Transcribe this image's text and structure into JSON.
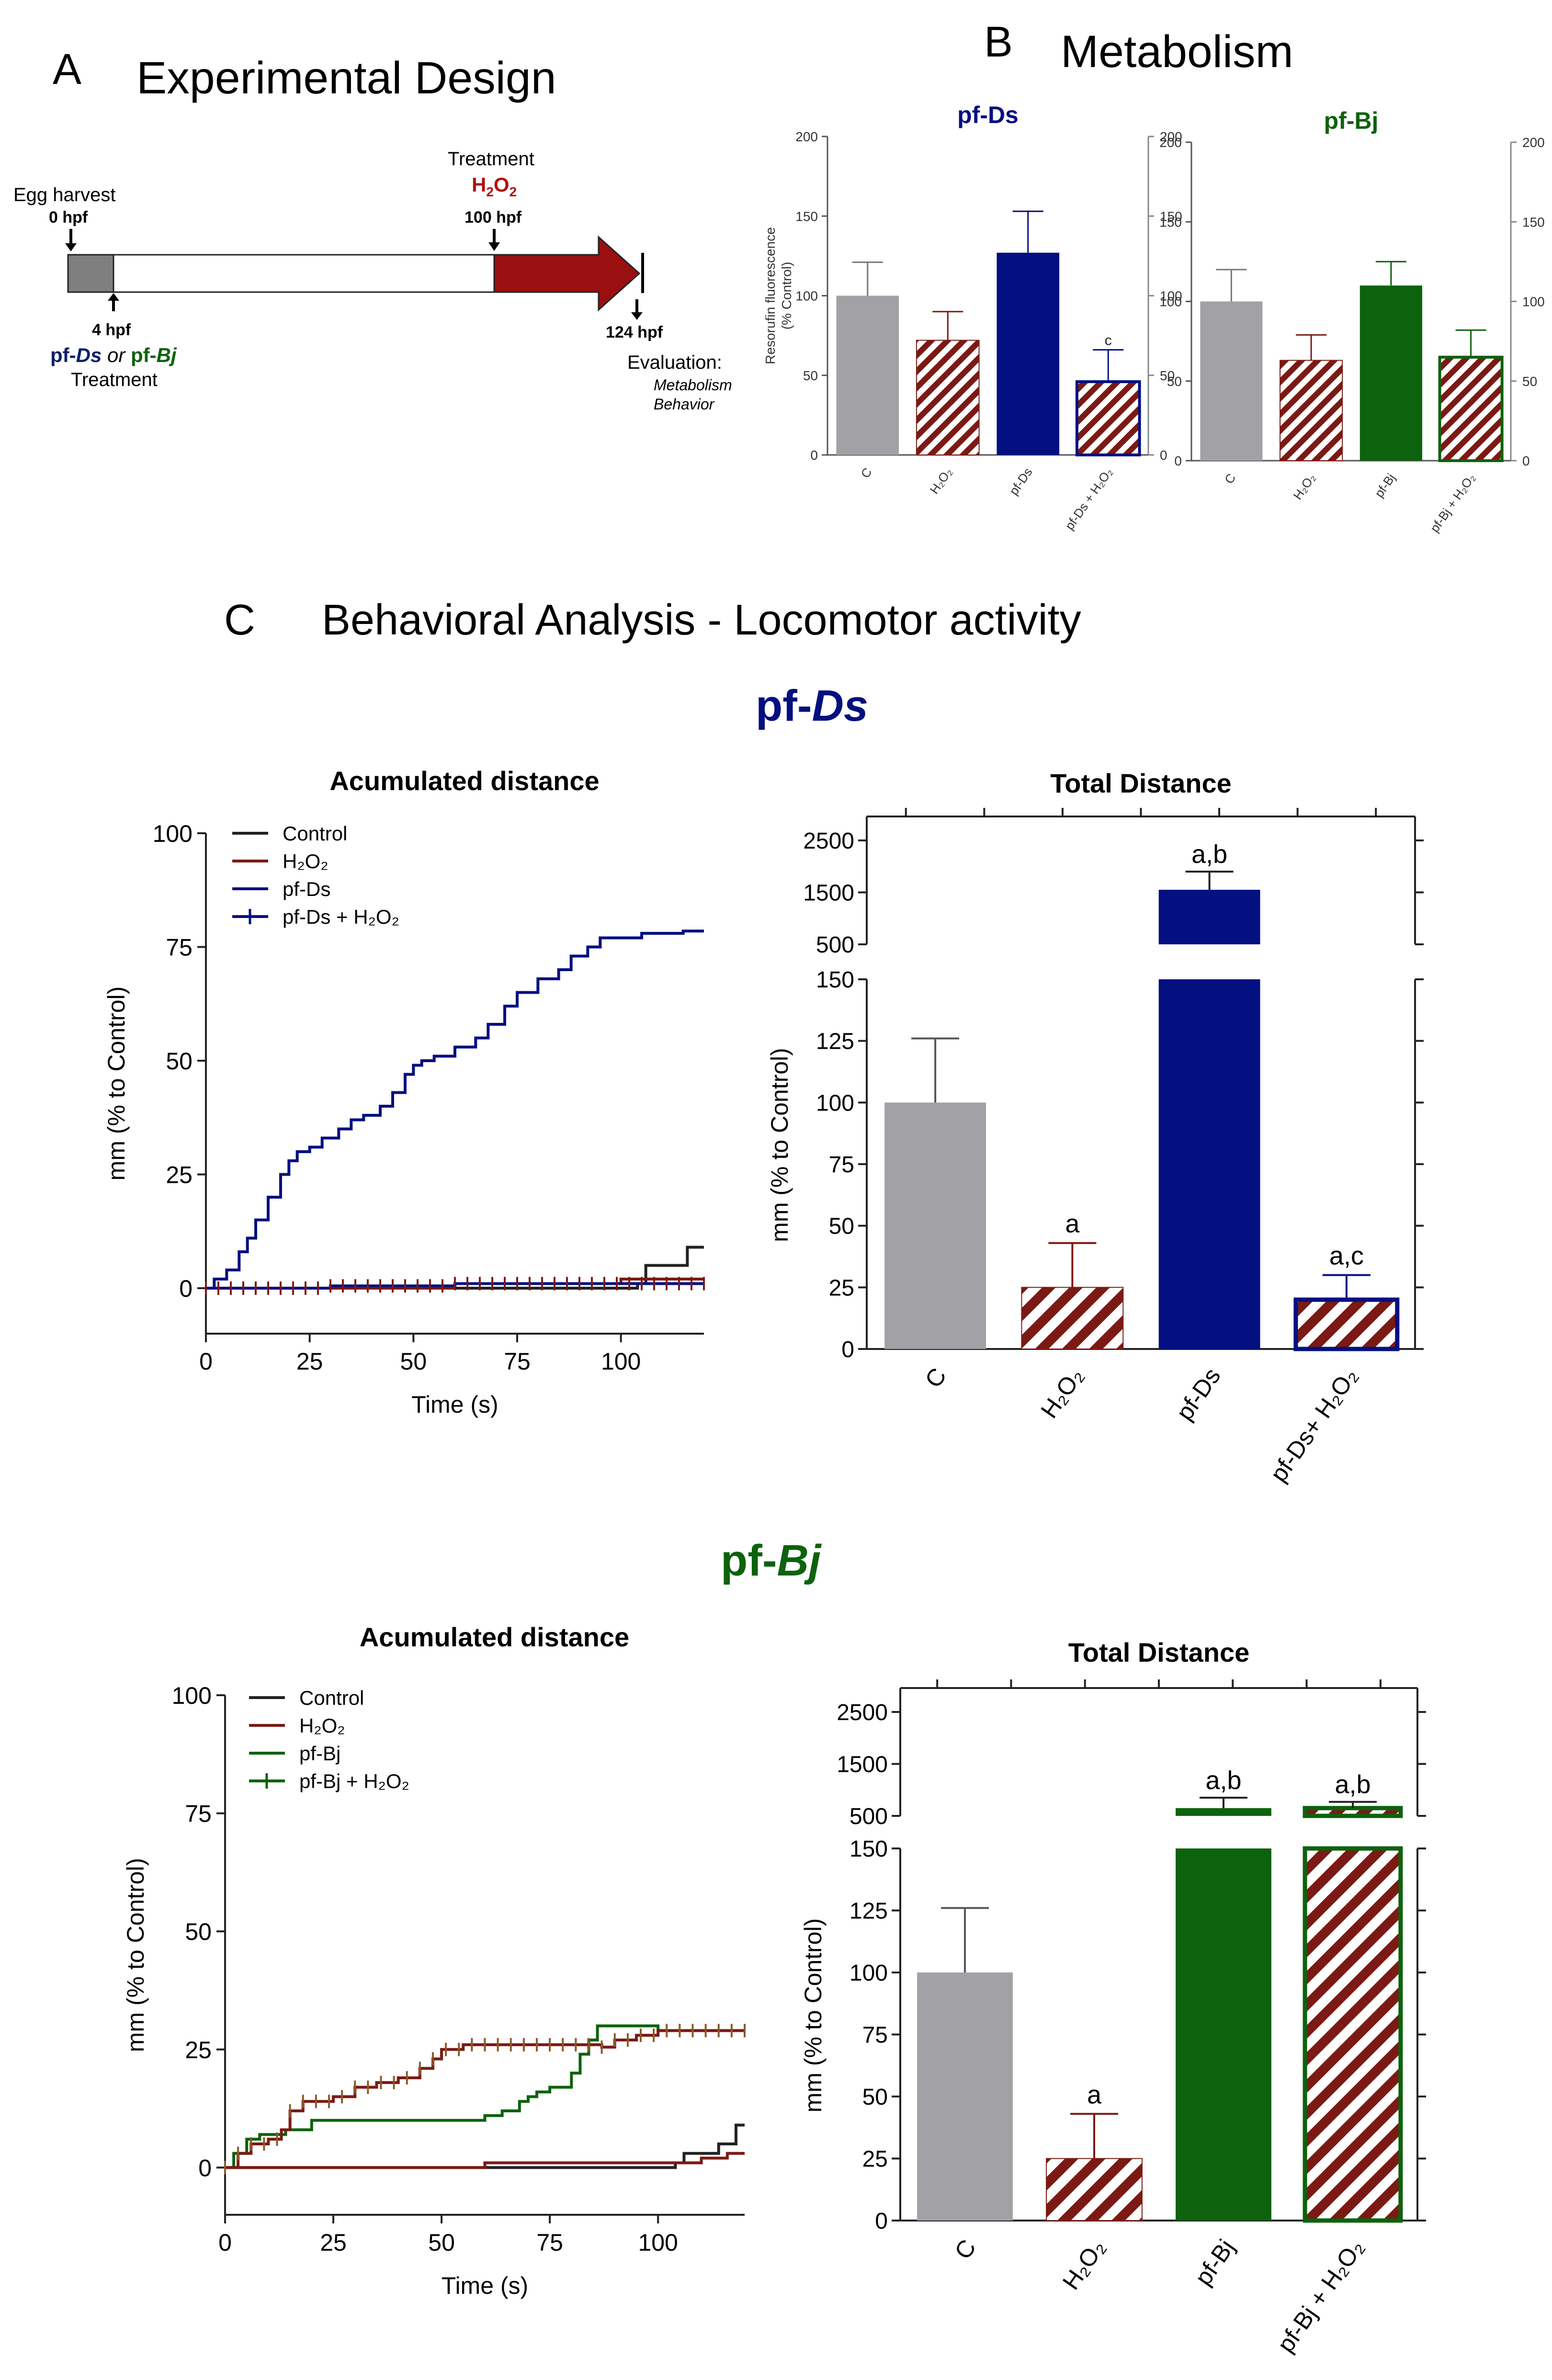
{
  "colors": {
    "gray": "#a2a1a6",
    "red": "#7b1a14",
    "navy": "#040f80",
    "green": "#0d620d",
    "black": "#222222"
  },
  "panelA": {
    "letter": "A",
    "title": "Experimental Design",
    "egg": "Egg harvest",
    "t0": "0 hpf",
    "t4": "4 hpf",
    "trt_a1": "pf-",
    "trt_a2": "Ds",
    "trt_or": " or ",
    "trt_b1": "pf-",
    "trt_b2": "Bj",
    "trt_label": "Treatment",
    "top_treat": "Treatment",
    "h2o2": "H",
    "h2o2_sub": "2",
    "h2o2_o": "O",
    "h2o2_sub2": "2",
    "t100": "100 hpf",
    "t124": "124 hpf",
    "eval": "Evaluation:",
    "eval1": "Metabolism",
    "eval2": "Behavior"
  },
  "panelB": {
    "letter": "B",
    "title": "Metabolism"
  },
  "panelC": {
    "letter": "C",
    "title": "Behavioral Analysis - Locomotor activity",
    "ds_1": "pf-",
    "ds_2": "Ds",
    "bj_1": "pf-",
    "bj_2": "Bj"
  },
  "chart_data": [
    {
      "id": "metab_ds",
      "type": "bar",
      "title": "pf-Ds",
      "ylabel": "Resorufin fluorescence (% Control)",
      "ylim": [
        0,
        200
      ],
      "yticks": [
        0,
        50,
        100,
        150,
        200
      ],
      "categories": [
        "C",
        "H2O2",
        "pf-Ds",
        "pf-Ds + H2O2"
      ],
      "values": [
        100,
        72,
        127,
        46
      ],
      "errors": [
        21,
        18,
        26,
        20
      ],
      "labels": [
        "",
        "",
        "",
        "c"
      ]
    },
    {
      "id": "metab_bj",
      "type": "bar",
      "title": "pf-Bj",
      "ylabel": "",
      "ylim": [
        0,
        200
      ],
      "yticks": [
        0,
        50,
        100,
        150,
        200
      ],
      "categories": [
        "C",
        "H2O2",
        "pf-Bj",
        "pf-Bj + H2O2"
      ],
      "values": [
        100,
        63,
        110,
        65
      ],
      "errors": [
        20,
        16,
        15,
        17
      ],
      "labels": [
        "",
        "",
        "",
        ""
      ]
    },
    {
      "id": "acc_ds",
      "type": "line",
      "title": "Acumulated distance",
      "xlabel": "Time (s)",
      "ylabel": "mm (% to Control)",
      "xlim": [
        0,
        120
      ],
      "ylim": [
        -10,
        100
      ],
      "xticks": [
        0,
        25,
        50,
        75,
        100
      ],
      "yticks": [
        0,
        25,
        50,
        75,
        100
      ],
      "legend": [
        "Control",
        "H2O2",
        "pf-Ds",
        "pf-Ds + H2O2"
      ],
      "series": [
        {
          "name": "Control",
          "x": [
            0,
            100,
            104,
            106,
            114,
            116,
            118,
            120
          ],
          "y": [
            0,
            0,
            1,
            5,
            5,
            9,
            9,
            9
          ]
        },
        {
          "name": "H2O2",
          "x": [
            0,
            60,
            100,
            120
          ],
          "y": [
            0,
            1,
            2,
            2
          ]
        },
        {
          "name": "pf-Ds",
          "x": [
            0,
            2,
            5,
            8,
            10,
            12,
            15,
            18,
            20,
            22,
            25,
            28,
            32,
            35,
            38,
            42,
            45,
            48,
            50,
            52,
            55,
            60,
            65,
            68,
            72,
            75,
            80,
            85,
            88,
            92,
            95,
            100,
            105,
            110,
            115,
            118,
            120
          ],
          "y": [
            0,
            2,
            4,
            8,
            11,
            15,
            20,
            25,
            28,
            30,
            31,
            33,
            35,
            37,
            38,
            40,
            43,
            47,
            49,
            50,
            51,
            53,
            55,
            58,
            62,
            65,
            68,
            70,
            73,
            75,
            77,
            77,
            78,
            78,
            78.5,
            78.5,
            78.5
          ]
        },
        {
          "name": "pf-Ds + H2O2",
          "x": [
            0,
            30,
            60,
            90,
            120
          ],
          "y": [
            0,
            0.5,
            1,
            1,
            1
          ]
        }
      ]
    },
    {
      "id": "tot_ds",
      "type": "bar",
      "title": "Total Distance",
      "ylabel": "mm (% to Control)",
      "yticks_low": [
        0,
        25,
        50,
        75,
        100,
        125,
        150
      ],
      "yticks_high": [
        500,
        1500,
        2500
      ],
      "categories": [
        "C",
        "H2O2",
        "pf-Ds",
        "pf-Ds+ H2O2"
      ],
      "values": [
        100,
        25,
        1550,
        20
      ],
      "errors": [
        26,
        18,
        350,
        10
      ],
      "labels": [
        "",
        "a",
        "a,b",
        "a,c"
      ]
    },
    {
      "id": "acc_bj",
      "type": "line",
      "title": "Acumulated distance",
      "xlabel": "Time (s)",
      "ylabel": "mm (% to Control)",
      "xlim": [
        0,
        120
      ],
      "ylim": [
        -10,
        100
      ],
      "xticks": [
        0,
        25,
        50,
        75,
        100
      ],
      "yticks": [
        0,
        25,
        50,
        75,
        100
      ],
      "legend": [
        "Control",
        "H2O2",
        "pf-Bj",
        "pf-Bj + H2O2"
      ],
      "series": [
        {
          "name": "Control",
          "x": [
            0,
            100,
            104,
            106,
            114,
            116,
            118,
            120
          ],
          "y": [
            0,
            0,
            1,
            3,
            5,
            5,
            9,
            9
          ]
        },
        {
          "name": "H2O2",
          "x": [
            0,
            60,
            100,
            110,
            114,
            116,
            120
          ],
          "y": [
            0,
            1,
            1,
            2,
            2,
            3,
            3
          ]
        },
        {
          "name": "pf-Bj",
          "x": [
            0,
            2,
            5,
            8,
            10,
            14,
            20,
            55,
            60,
            64,
            68,
            70,
            72,
            75,
            80,
            82,
            84,
            86,
            88,
            95,
            100,
            110,
            120
          ],
          "y": [
            0,
            3,
            6,
            7,
            7,
            8,
            10,
            10,
            11,
            12,
            14,
            15,
            16,
            17,
            20,
            24,
            27,
            30,
            30,
            30,
            29,
            29,
            29
          ]
        },
        {
          "name": "pf-Bj + H2O2",
          "x": [
            0,
            3,
            6,
            10,
            13,
            15,
            18,
            22,
            25,
            30,
            35,
            40,
            45,
            48,
            50,
            52,
            55,
            60,
            65,
            70,
            75,
            80,
            85,
            87,
            90,
            95,
            100,
            110,
            120
          ],
          "y": [
            0,
            3,
            5,
            6,
            8,
            12,
            14,
            14,
            15,
            17,
            18,
            19,
            21,
            23,
            25,
            25,
            26,
            26,
            26,
            26,
            26,
            26,
            26,
            25.5,
            27,
            28,
            29,
            29,
            29
          ]
        }
      ]
    },
    {
      "id": "tot_bj",
      "type": "bar",
      "title": "Total Distance",
      "ylabel": "mm (% to Control)",
      "yticks_low": [
        0,
        25,
        50,
        75,
        100,
        125,
        150
      ],
      "yticks_high": [
        500,
        1500,
        2500
      ],
      "categories": [
        "C",
        "H2O2",
        "pf-Bj",
        "pf-Bj + H2O2"
      ],
      "values": [
        100,
        25,
        650,
        650
      ],
      "errors": [
        26,
        18,
        200,
        120
      ],
      "labels": [
        "",
        "a",
        "a,b",
        "a,b"
      ]
    }
  ]
}
